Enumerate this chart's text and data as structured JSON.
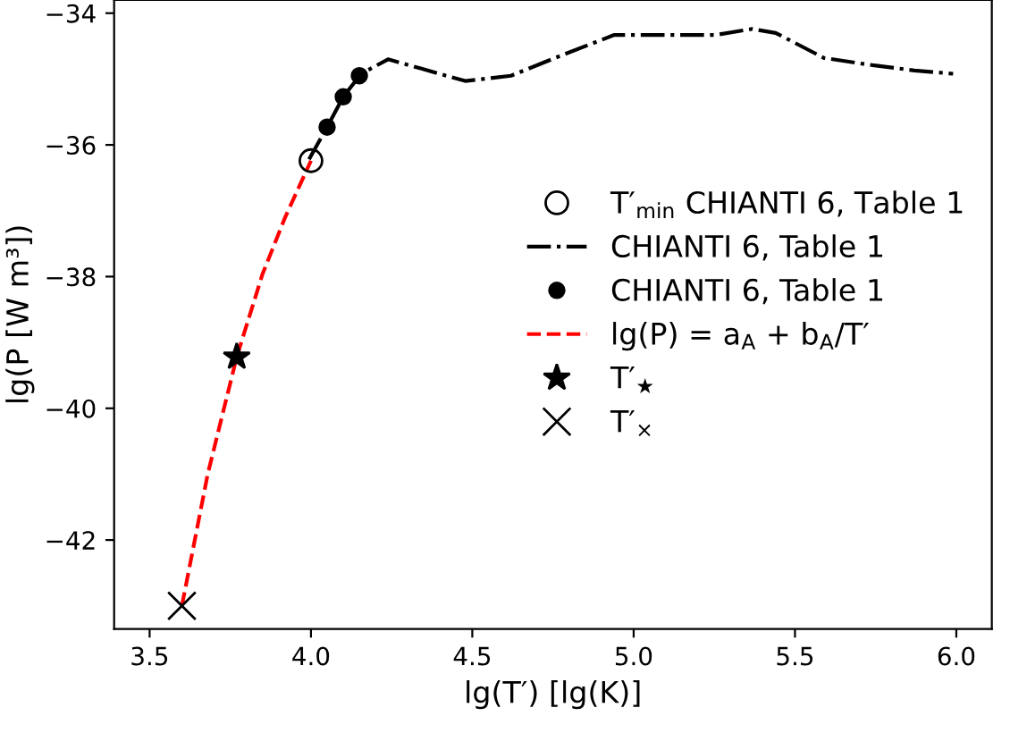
{
  "chart_data": {
    "type": "line",
    "xlabel": "lg(T′) [lg(K)]",
    "ylabel": "lg(P [W m³])",
    "xlim": [
      3.39,
      6.11
    ],
    "ylim": [
      -43.35,
      -33.8
    ],
    "xticks": [
      {
        "value": 3.5,
        "label": "3.5"
      },
      {
        "value": 4.0,
        "label": "4.0"
      },
      {
        "value": 4.5,
        "label": "4.5"
      },
      {
        "value": 5.0,
        "label": "5.0"
      },
      {
        "value": 5.5,
        "label": "5.5"
      },
      {
        "value": 6.0,
        "label": "6.0"
      }
    ],
    "yticks": [
      {
        "value": -42,
        "label": "−42"
      },
      {
        "value": -40,
        "label": "−40"
      },
      {
        "value": -38,
        "label": "−38"
      },
      {
        "value": -36,
        "label": "−36"
      },
      {
        "value": -34,
        "label": "−34"
      }
    ],
    "grid": false,
    "legend": "right",
    "series": [
      {
        "name": "T′$_{min}$ CHIANTI 6, Table 1",
        "type": "scatter",
        "marker": "circle",
        "color": "#000000",
        "x": [
          4.0
        ],
        "values": [
          -36.24
        ]
      },
      {
        "name": "CHIANTI 6, Table 1",
        "line_style": "dashdot",
        "marker": "none",
        "color": "#000000",
        "x": [
          3.994,
          4.05,
          4.1,
          4.156,
          4.239,
          4.34,
          4.478,
          4.62,
          4.756,
          4.94,
          5.128,
          5.256,
          5.367,
          5.44,
          5.59,
          5.74,
          5.87,
          5.99
        ],
        "values": [
          -36.22,
          -35.73,
          -35.27,
          -34.92,
          -34.7,
          -34.84,
          -35.03,
          -34.95,
          -34.68,
          -34.33,
          -34.33,
          -34.33,
          -34.24,
          -34.3,
          -34.68,
          -34.79,
          -34.87,
          -34.92
        ]
      },
      {
        "name": "CHIANTI 6, Table 1",
        "type": "scatter",
        "marker": "circle",
        "color": "#000000",
        "x": [
          4.05,
          4.1,
          4.15
        ],
        "values": [
          -35.73,
          -35.27,
          -34.95
        ]
      },
      {
        "name": "lg(P) = a$_{A}$ + b$_{A}$/T′",
        "line_style": "dashed",
        "marker": "none",
        "color": "#ff0000",
        "x": [
          3.6,
          3.68,
          3.77,
          3.85,
          3.92,
          4.0
        ],
        "values": [
          -43.0,
          -41.0,
          -39.22,
          -37.96,
          -37.1,
          -36.24
        ]
      },
      {
        "name": "T′$_{★}$",
        "type": "scatter",
        "marker": "star",
        "color": "#000000",
        "x": [
          3.77
        ],
        "values": [
          -39.22
        ]
      },
      {
        "name": "T′$_{×}$",
        "type": "scatter",
        "marker": "cross",
        "color": "#000000",
        "x": [
          3.6
        ],
        "values": [
          -43.0
        ]
      }
    ]
  }
}
